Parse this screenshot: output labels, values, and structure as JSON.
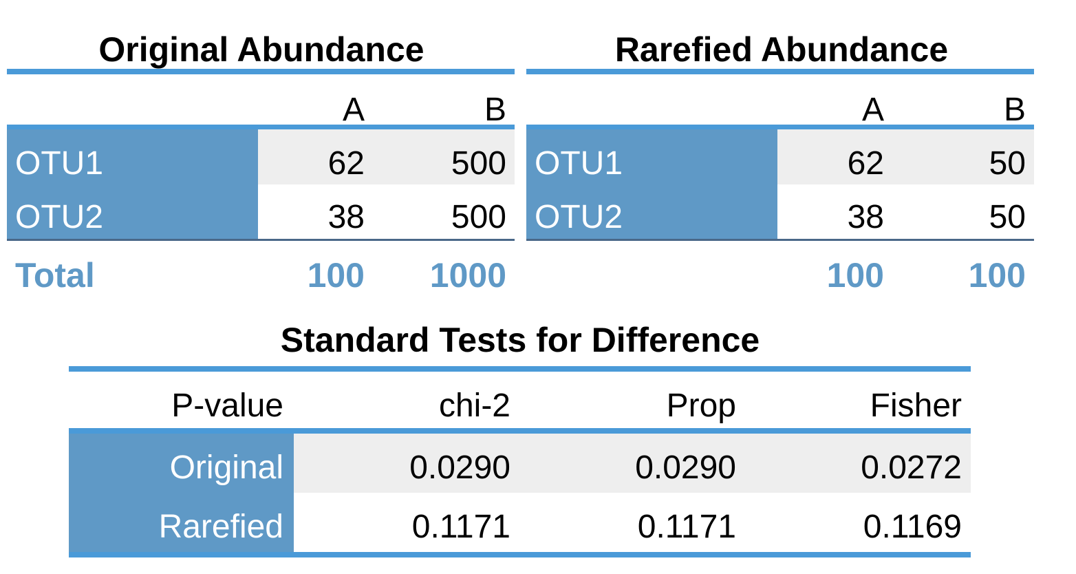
{
  "original": {
    "title": "Original Abundance",
    "columns": [
      "A",
      "B"
    ],
    "rows": [
      {
        "label": "OTU1",
        "values": [
          "62",
          "500"
        ]
      },
      {
        "label": "OTU2",
        "values": [
          "38",
          "500"
        ]
      }
    ],
    "total_label": "Total",
    "totals": [
      "100",
      "1000"
    ]
  },
  "rarefied": {
    "title": "Rarefied Abundance",
    "columns": [
      "A",
      "B"
    ],
    "rows": [
      {
        "label": "OTU1",
        "values": [
          "62",
          "50"
        ]
      },
      {
        "label": "OTU2",
        "values": [
          "38",
          "50"
        ]
      }
    ],
    "totals": [
      "100",
      "100"
    ]
  },
  "tests": {
    "title": "Standard Tests for Difference",
    "corner_label": "P-value",
    "columns": [
      "chi-2",
      "Prop",
      "Fisher"
    ],
    "rows": [
      {
        "label": "Original",
        "values": [
          "0.0290",
          "0.0290",
          "0.0272"
        ]
      },
      {
        "label": "Rarefied",
        "values": [
          "0.1171",
          "0.1171",
          "0.1169"
        ]
      }
    ]
  },
  "colors": {
    "accent_rule": "#4a9ad8",
    "row_header_fill": "#5f99c6",
    "total_text": "#5f99c6",
    "shade_fill": "#eeeeee",
    "thin_rule": "#4a6888"
  }
}
